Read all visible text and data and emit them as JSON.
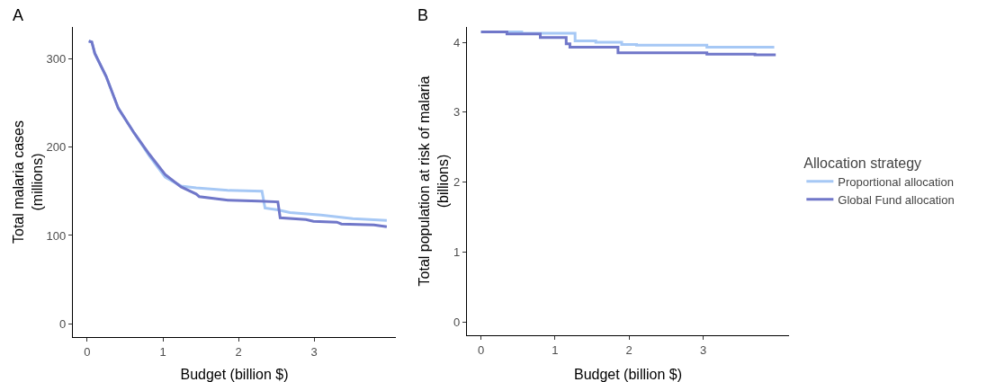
{
  "chart_data": [
    {
      "type": "line",
      "title": "A",
      "xlabel": "Budget (billion $)",
      "ylabel": "Total malaria cases\n(millions)",
      "xlim": [
        -0.19,
        4.08
      ],
      "ylim": [
        -15,
        336
      ],
      "xticks": [
        0,
        1,
        2,
        3
      ],
      "yticks": [
        0,
        100,
        200,
        300
      ],
      "grid": false,
      "legend": false,
      "series": [
        {
          "color": "#a6c8f5",
          "x": [
            0.02,
            0.06,
            0.1,
            0.25,
            0.41,
            0.62,
            0.82,
            1.03,
            1.24,
            1.44,
            1.86,
            2.31,
            2.35,
            2.52,
            2.68,
            3.09,
            3.51,
            3.96
          ],
          "values": [
            320,
            319,
            306,
            280,
            244,
            216,
            190,
            166,
            156,
            154,
            151,
            150,
            131,
            129,
            126,
            123,
            119,
            117
          ]
        },
        {
          "color": "#7077c9",
          "x": [
            0.02,
            0.06,
            0.1,
            0.25,
            0.41,
            0.62,
            0.82,
            1.03,
            1.24,
            1.44,
            1.48,
            1.86,
            2.27,
            2.52,
            2.55,
            2.89,
            2.99,
            3.3,
            3.36,
            3.79,
            3.96
          ],
          "values": [
            320,
            319,
            306,
            280,
            244,
            216,
            192,
            169,
            155,
            147,
            144,
            140,
            139,
            138,
            120,
            118,
            116,
            115,
            113,
            112,
            110
          ]
        }
      ]
    },
    {
      "type": "step",
      "title": "B",
      "xlabel": "Budget (billion $)",
      "ylabel": "Total population at risk of malaria\n(billions)",
      "xlim": [
        -0.19,
        4.16
      ],
      "ylim": [
        -0.19,
        4.22
      ],
      "xticks": [
        0,
        1,
        2,
        3
      ],
      "yticks": [
        0,
        1,
        2,
        3,
        4
      ],
      "grid": false,
      "legend": "right",
      "legend_title": "Allocation strategy",
      "series": [
        {
          "name": "Proportional allocation",
          "color": "#a6c8f5",
          "x": [
            0.0,
            0.55,
            1.27,
            1.55,
            1.9,
            2.1,
            3.05,
            3.96
          ],
          "values": [
            4.15,
            4.13,
            4.02,
            4.0,
            3.97,
            3.96,
            3.93,
            3.93
          ]
        },
        {
          "name": "Global Fund allocation",
          "color": "#7077c9",
          "x": [
            0.0,
            0.35,
            0.8,
            1.15,
            1.2,
            1.85,
            3.05,
            3.7,
            3.98
          ],
          "values": [
            4.15,
            4.12,
            4.07,
            3.98,
            3.93,
            3.85,
            3.83,
            3.82,
            3.82
          ]
        }
      ]
    }
  ]
}
